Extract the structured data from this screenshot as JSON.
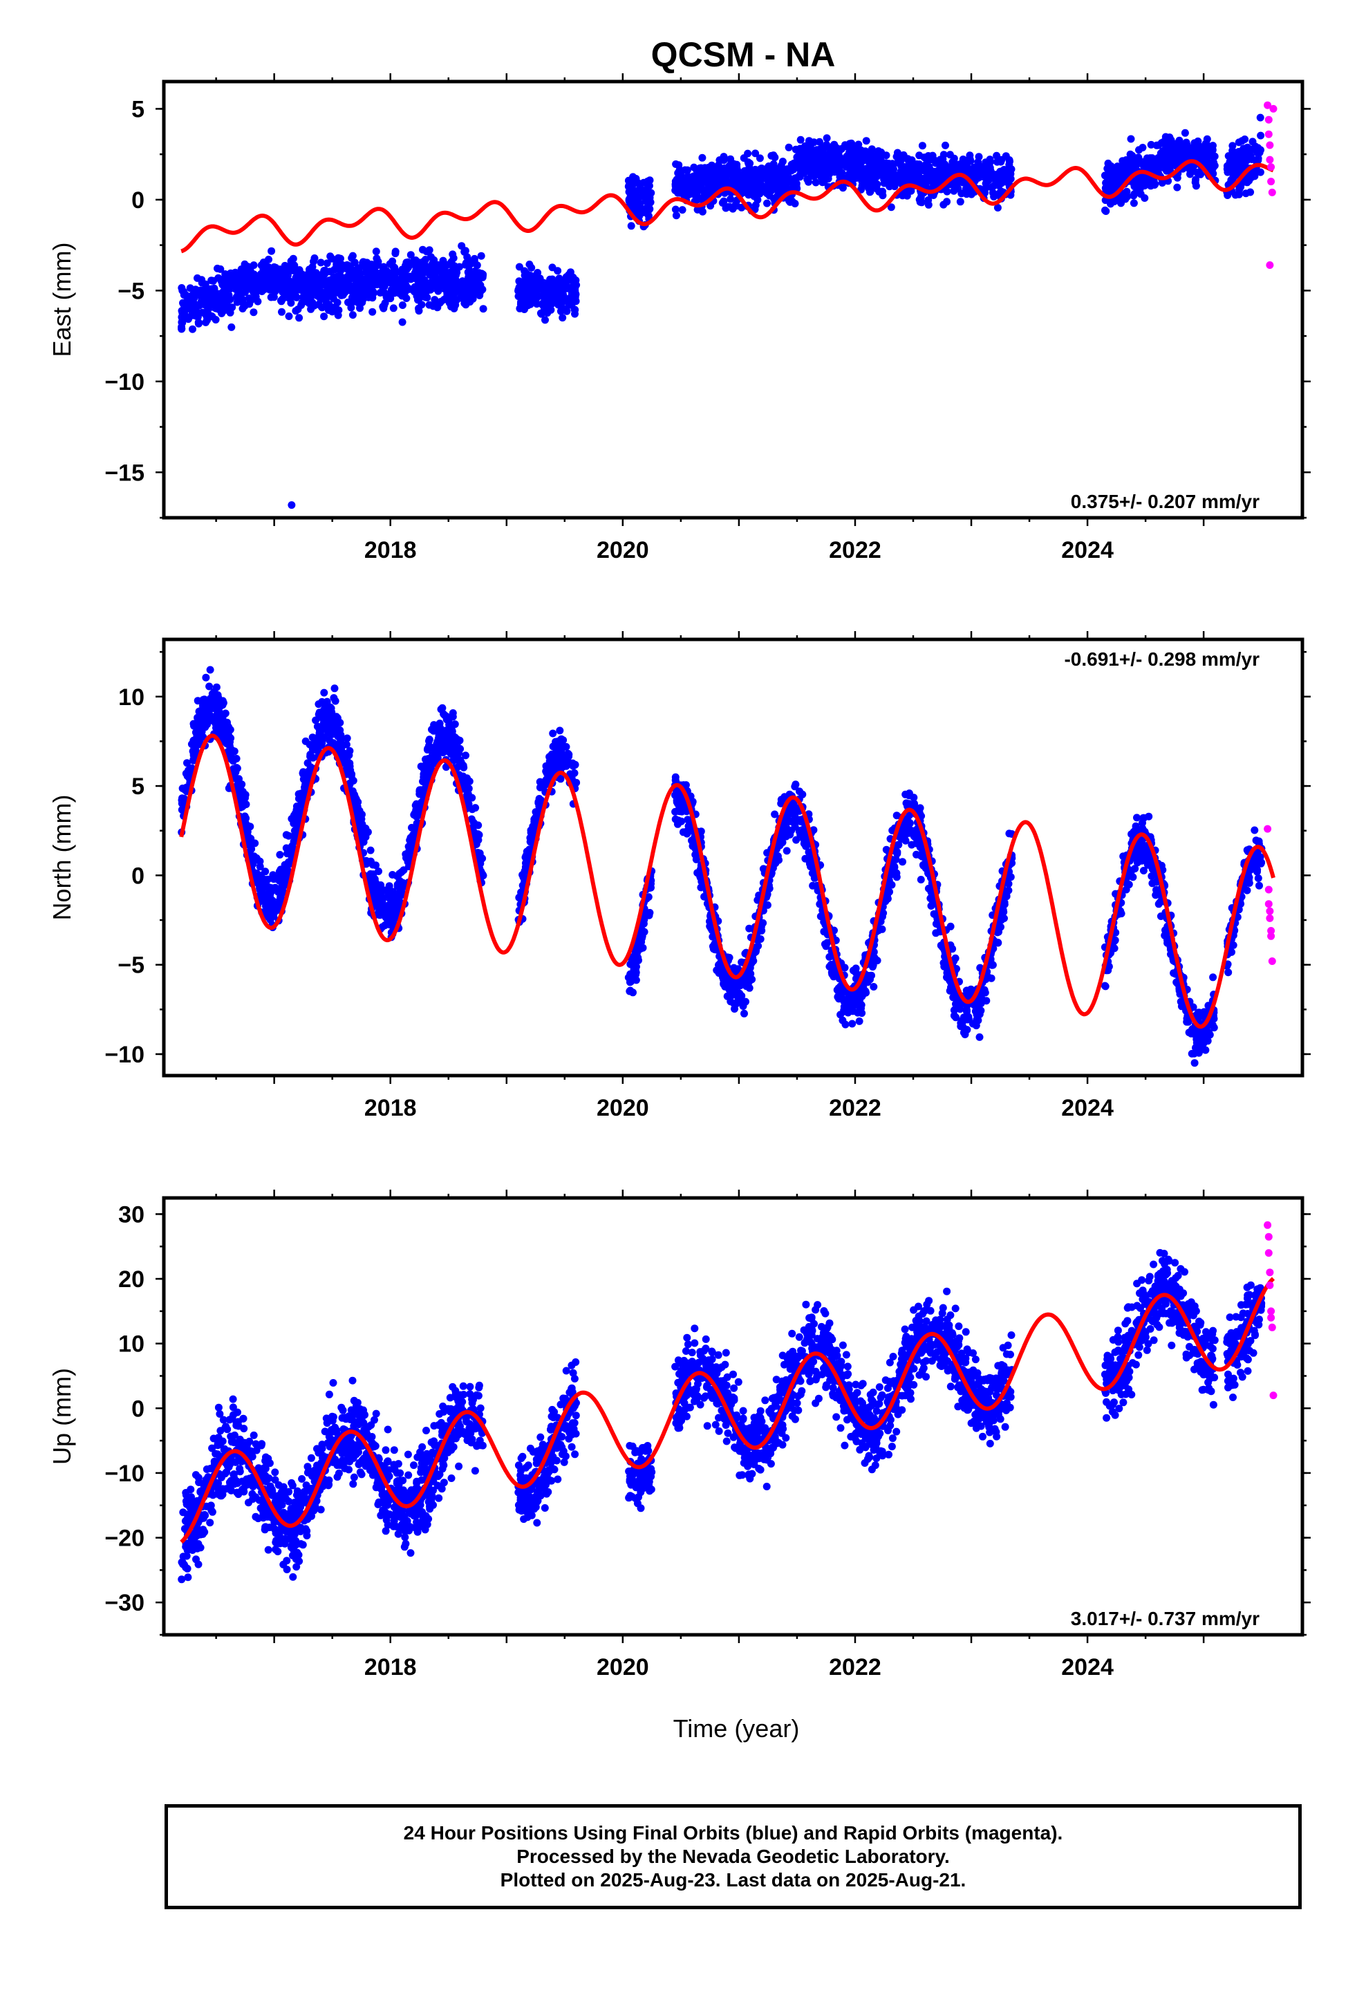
{
  "title": "QCSM - NA",
  "x_axis_label": "Time (year)",
  "footer": {
    "line1": "24 Hour Positions Using Final Orbits (blue) and Rapid Orbits (magenta).",
    "line2": "Processed by the Nevada Geodetic Laboratory.",
    "line3": "Plotted on 2025-Aug-23. Last data on 2025-Aug-21."
  },
  "colors": {
    "final_orbits": "#0000ff",
    "rapid_orbits": "#ff00ff",
    "model_fit": "#ff0000"
  },
  "chart_data": [
    {
      "type": "scatter",
      "panel": "east",
      "ylabel": "East (mm)",
      "xlim": [
        2016.05,
        2025.85
      ],
      "ylim": [
        -17.5,
        6.5
      ],
      "yticks": [
        5,
        0,
        -5,
        -10,
        -15
      ],
      "ytick_labels": [
        "5",
        "0",
        "−5",
        "−10",
        "−15"
      ],
      "xticks": [
        2018,
        2020,
        2022,
        2024
      ],
      "rate_label": "0.375+/- 0.207 mm/yr",
      "rate_position": "bottom-right",
      "model": {
        "offset": -1.9,
        "rate": 0.375,
        "seasonal_amp": 0.8,
        "step_2020": 0.0
      },
      "final_orbits_segments": [
        {
          "start": 2016.2,
          "end": 2017.0,
          "mean_start": -6.0,
          "mean_end": -4.2,
          "spread": 1.1
        },
        {
          "start": 2017.0,
          "end": 2018.8,
          "mean_start": -4.6,
          "mean_end": -4.4,
          "spread": 1.2
        },
        {
          "start": 2019.1,
          "end": 2019.6,
          "mean_start": -5.0,
          "mean_end": -5.2,
          "spread": 1.0
        },
        {
          "start": 2020.05,
          "end": 2020.25,
          "mean_start": 0.0,
          "mean_end": 0.0,
          "spread": 1.1
        },
        {
          "start": 2020.45,
          "end": 2021.5,
          "mean_start": 0.8,
          "mean_end": 1.2,
          "spread": 1.1
        },
        {
          "start": 2021.5,
          "end": 2022.3,
          "mean_start": 2.4,
          "mean_end": 1.5,
          "spread": 1.0
        },
        {
          "start": 2022.3,
          "end": 2023.35,
          "mean_start": 1.3,
          "mean_end": 1.3,
          "spread": 1.0
        },
        {
          "start": 2024.15,
          "end": 2024.6,
          "mean_start": 0.8,
          "mean_end": 1.8,
          "spread": 1.1
        },
        {
          "start": 2024.6,
          "end": 2025.1,
          "mean_start": 2.2,
          "mean_end": 2.4,
          "spread": 1.0
        },
        {
          "start": 2025.2,
          "end": 2025.5,
          "mean_start": 1.2,
          "mean_end": 2.8,
          "spread": 1.2
        }
      ],
      "rapid_orbits": [
        [
          2025.55,
          5.2
        ],
        [
          2025.56,
          4.4
        ],
        [
          2025.56,
          3.6
        ],
        [
          2025.57,
          3.0
        ],
        [
          2025.57,
          2.2
        ],
        [
          2025.58,
          1.8
        ],
        [
          2025.58,
          1.0
        ],
        [
          2025.59,
          0.4
        ],
        [
          2025.57,
          -3.6
        ],
        [
          2025.6,
          5.0
        ]
      ],
      "outliers": [
        [
          2017.15,
          -16.8
        ]
      ]
    },
    {
      "type": "scatter",
      "panel": "north",
      "ylabel": "North (mm)",
      "xlim": [
        2016.05,
        2025.85
      ],
      "ylim": [
        -11.2,
        13.2
      ],
      "yticks": [
        10,
        5,
        0,
        -5,
        -10
      ],
      "ytick_labels": [
        "10",
        "5",
        "0",
        "−5",
        "−10"
      ],
      "xticks": [
        2018,
        2020,
        2022,
        2024
      ],
      "rate_label": "-0.691+/- 0.298 mm/yr",
      "rate_position": "top-right",
      "model": {
        "offset": 2.8,
        "rate": -0.691,
        "seasonal_amp": 5.2,
        "peak_phase": 0.47
      },
      "final_orbits_segments": [
        {
          "start": 2016.2,
          "end": 2018.8,
          "model_offset": 1.5,
          "spread": 1.3
        },
        {
          "start": 2019.1,
          "end": 2019.6,
          "model_offset": 1.0,
          "spread": 1.2
        },
        {
          "start": 2020.05,
          "end": 2020.25,
          "model_offset": -1.2,
          "spread": 1.2
        },
        {
          "start": 2020.45,
          "end": 2023.35,
          "model_offset": -0.6,
          "spread": 1.3
        },
        {
          "start": 2024.15,
          "end": 2025.1,
          "model_offset": -0.4,
          "spread": 1.2
        },
        {
          "start": 2025.2,
          "end": 2025.5,
          "model_offset": -0.5,
          "spread": 1.0
        }
      ],
      "rapid_orbits": [
        [
          2025.55,
          2.6
        ],
        [
          2025.56,
          -0.8
        ],
        [
          2025.56,
          -1.6
        ],
        [
          2025.57,
          -2.0
        ],
        [
          2025.57,
          -2.4
        ],
        [
          2025.58,
          -3.1
        ],
        [
          2025.58,
          -3.4
        ],
        [
          2025.59,
          -4.8
        ]
      ]
    },
    {
      "type": "scatter",
      "panel": "up",
      "ylabel": "Up (mm)",
      "xlim": [
        2016.05,
        2025.85
      ],
      "ylim": [
        -35.0,
        32.5
      ],
      "yticks": [
        30,
        20,
        10,
        0,
        -10,
        -20,
        -30
      ],
      "ytick_labels": [
        "30",
        "20",
        "10",
        "0",
        "−10",
        "−20",
        "−30"
      ],
      "xticks": [
        2018,
        2020,
        2022,
        2024
      ],
      "rate_label": "3.017+/- 0.737 mm/yr",
      "rate_position": "bottom-right",
      "model": {
        "offset": -14.5,
        "rate": 3.017,
        "seasonal_amp": 6.5,
        "peak_phase": 0.65
      },
      "final_orbits_segments": [
        {
          "start": 2016.2,
          "end": 2018.8,
          "model_offset": 0.0,
          "spread": 5.5
        },
        {
          "start": 2019.1,
          "end": 2019.6,
          "model_offset": -1.0,
          "spread": 5.0
        },
        {
          "start": 2020.05,
          "end": 2020.25,
          "model_offset": -1.0,
          "spread": 4.0
        },
        {
          "start": 2020.45,
          "end": 2023.35,
          "model_offset": 0.5,
          "spread": 5.0
        },
        {
          "start": 2024.15,
          "end": 2025.1,
          "model_offset": 0.5,
          "spread": 5.0
        },
        {
          "start": 2025.2,
          "end": 2025.5,
          "model_offset": 0.0,
          "spread": 4.5
        }
      ],
      "rapid_orbits": [
        [
          2025.55,
          28.3
        ],
        [
          2025.56,
          26.5
        ],
        [
          2025.56,
          24.0
        ],
        [
          2025.57,
          21.0
        ],
        [
          2025.57,
          19.0
        ],
        [
          2025.58,
          15.0
        ],
        [
          2025.58,
          14.0
        ],
        [
          2025.59,
          12.5
        ],
        [
          2025.6,
          2.0
        ]
      ]
    }
  ]
}
